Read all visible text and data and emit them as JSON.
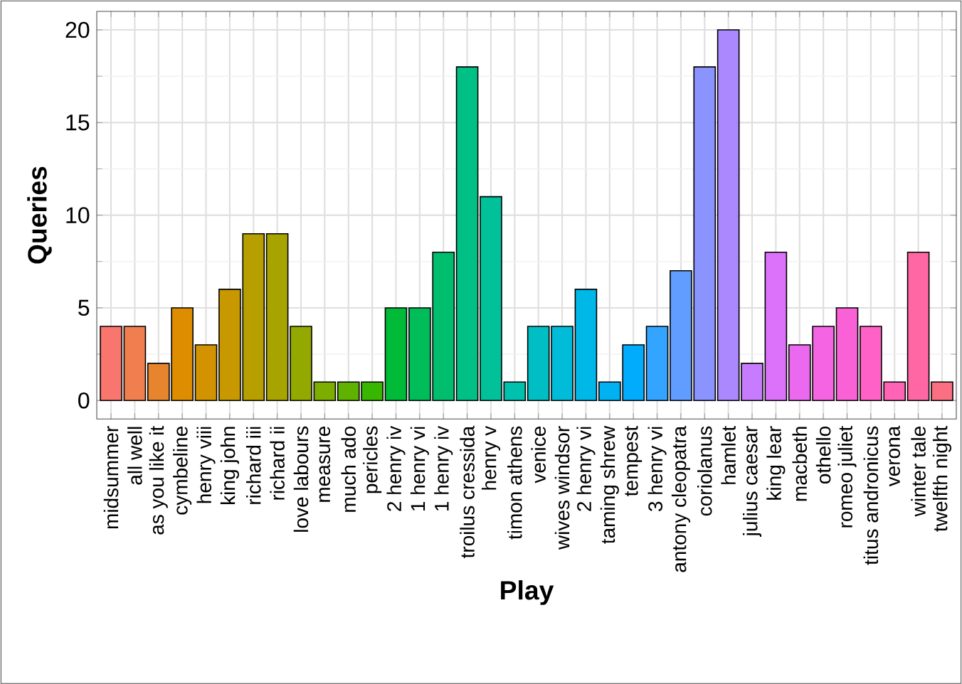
{
  "chart_data": {
    "type": "bar",
    "xlabel": "Play",
    "ylabel": "Queries",
    "categories": [
      "midsummer",
      "all well",
      "as you like it",
      "cymbeline",
      "henry viii",
      "king john",
      "richard iii",
      "richard ii",
      "love labours",
      "measure",
      "much ado",
      "pericles",
      "2 henry iv",
      "1 henry vi",
      "1 henry iv",
      "troilus cressida",
      "henry v",
      "timon athens",
      "venice",
      "wives windsor",
      "2 henry vi",
      "taming shrew",
      "tempest",
      "3 henry vi",
      "antony cleopatra",
      "coriolanus",
      "hamlet",
      "julius caesar",
      "king lear",
      "macbeth",
      "othello",
      "romeo juliet",
      "titus andronicus",
      "verona",
      "winter tale",
      "twelfth night"
    ],
    "values": [
      4,
      4,
      2,
      5,
      3,
      6,
      9,
      9,
      4,
      1,
      1,
      1,
      5,
      5,
      8,
      18,
      11,
      1,
      4,
      4,
      6,
      1,
      3,
      4,
      7,
      18,
      20,
      2,
      8,
      3,
      4,
      5,
      4,
      1,
      8,
      1
    ],
    "colors": [
      "#F8766D",
      "#F07E4E",
      "#E7852E",
      "#DE8C00",
      "#D39200",
      "#C79800",
      "#B79F00",
      "#A7A400",
      "#93A900",
      "#7CAE00",
      "#5FB200",
      "#39B600",
      "#00BA38",
      "#00BC59",
      "#00BE6E",
      "#00C086",
      "#00C19A",
      "#00C0AE",
      "#00BFC4",
      "#00BCD8",
      "#00B8E7",
      "#00B2F2",
      "#00ACFB",
      "#33A4FF",
      "#619CFF",
      "#8B93FF",
      "#AC88FF",
      "#C77CFF",
      "#DC71FA",
      "#EA69EF",
      "#F564E3",
      "#FB61D6",
      "#FF61C6",
      "#FF63B6",
      "#FE67A3",
      "#FB6F82"
    ],
    "ylim": [
      -1,
      21
    ],
    "yticks": [
      0,
      5,
      10,
      15,
      20
    ],
    "grid": true
  }
}
